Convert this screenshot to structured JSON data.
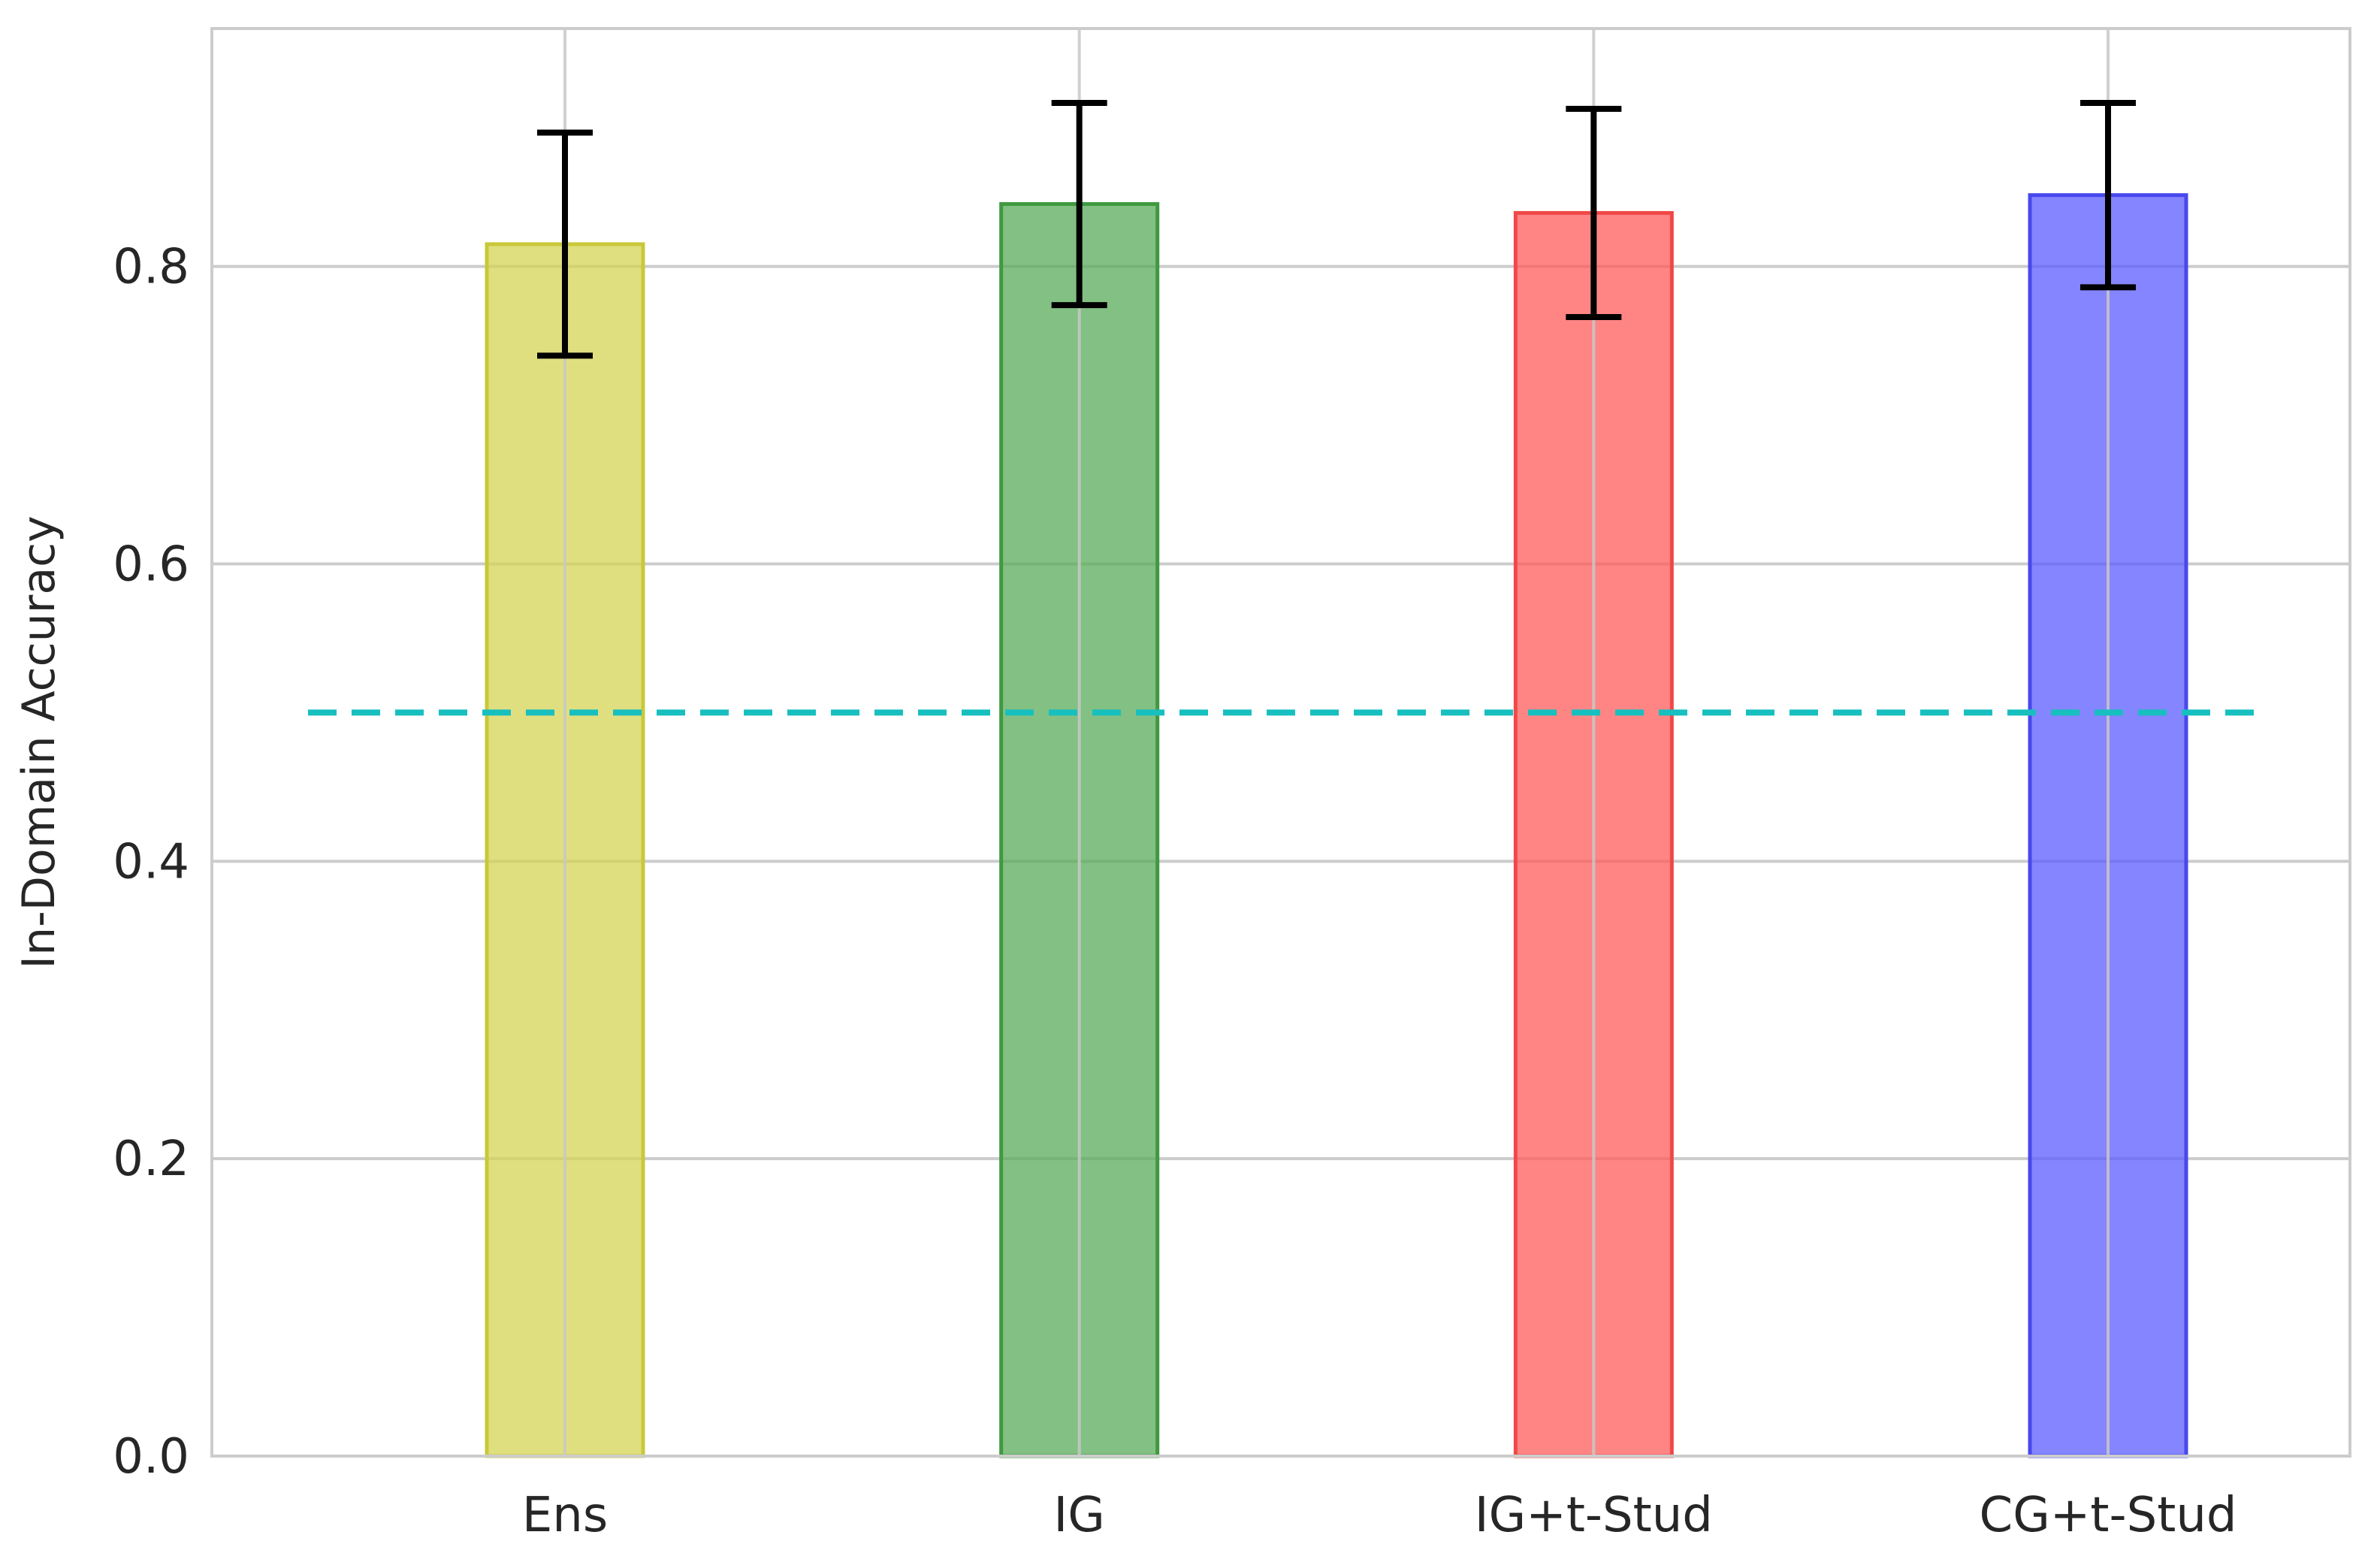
{
  "chart_data": {
    "type": "bar",
    "categories": [
      "Ens",
      "IG",
      "IG+t-Stud",
      "CG+t-Stud"
    ],
    "values": [
      0.815,
      0.842,
      0.836,
      0.848
    ],
    "error": [
      0.075,
      0.068,
      0.07,
      0.062
    ],
    "colors": [
      "#d4d454",
      "#5aab5a",
      "#ff5c5c",
      "#5c5cff"
    ],
    "edge_colors": [
      "#c8c83a",
      "#3f9a3f",
      "#f04848",
      "#4848ee"
    ],
    "xlabel": "",
    "ylabel": "In-Domain Accuracy",
    "ylim": [
      0,
      0.96
    ],
    "yticks": [
      0.0,
      0.2,
      0.4,
      0.6,
      0.8
    ],
    "ytick_labels": [
      "0.0",
      "0.2",
      "0.4",
      "0.6",
      "0.8"
    ],
    "reference_line": {
      "value": 0.5,
      "style": "dashed",
      "color": "#17bfbf"
    },
    "grid": true
  }
}
